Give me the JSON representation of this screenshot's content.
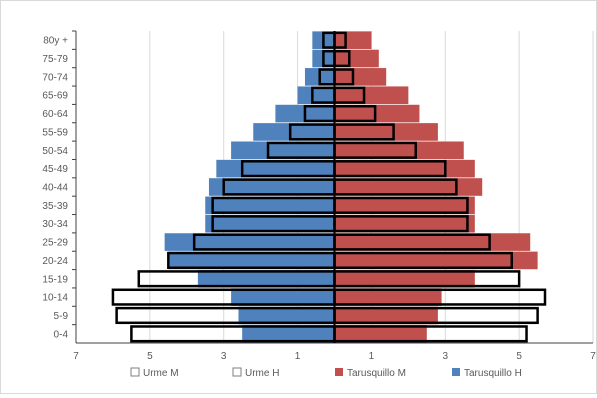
{
  "chart_data": {
    "type": "bar",
    "orientation": "horizontal-population-pyramid",
    "age_groups": [
      "0-4",
      "5-9",
      "10-14",
      "15-19",
      "20-24",
      "25-29",
      "30-34",
      "35-39",
      "40-44",
      "45-49",
      "50-54",
      "55-59",
      "60-64",
      "65-69",
      "70-74",
      "75-79",
      "80y +"
    ],
    "x_ticks": [
      "7",
      "5",
      "3",
      "1",
      "1",
      "3",
      "5",
      "7"
    ],
    "xlim": [
      -7,
      7
    ],
    "grid": true,
    "legend_position": "bottom",
    "series": [
      {
        "name": "Urme M",
        "side": "left",
        "style": "outline",
        "fill": "#ffffff",
        "stroke": "#000000",
        "values": [
          5.5,
          5.9,
          6.0,
          5.3,
          4.5,
          3.8,
          3.3,
          3.3,
          3.0,
          2.5,
          1.8,
          1.2,
          0.8,
          0.6,
          0.4,
          0.3,
          0.3
        ]
      },
      {
        "name": "Urme H",
        "side": "right",
        "style": "outline",
        "fill": "#ffffff",
        "stroke": "#000000",
        "values": [
          5.2,
          5.5,
          5.7,
          5.0,
          4.8,
          4.2,
          3.6,
          3.6,
          3.3,
          3.0,
          2.2,
          1.6,
          1.1,
          0.8,
          0.5,
          0.4,
          0.3
        ]
      },
      {
        "name": "Tarusquillo M",
        "side": "right",
        "style": "filled",
        "fill": "#c0504d",
        "values": [
          2.5,
          2.8,
          2.9,
          3.8,
          5.5,
          5.3,
          3.8,
          3.8,
          4.0,
          3.8,
          3.5,
          2.8,
          2.3,
          2.0,
          1.4,
          1.2,
          1.0
        ]
      },
      {
        "name": "Tarusquillo H",
        "side": "left",
        "style": "filled",
        "fill": "#4f81bd",
        "values": [
          2.5,
          2.6,
          2.8,
          3.7,
          4.5,
          4.6,
          3.5,
          3.5,
          3.4,
          3.2,
          2.8,
          2.2,
          1.6,
          1.0,
          0.8,
          0.6,
          0.6
        ]
      }
    ],
    "colors": {
      "grid": "#d9d9d9",
      "axis": "#404040",
      "outline": "#000000"
    }
  }
}
